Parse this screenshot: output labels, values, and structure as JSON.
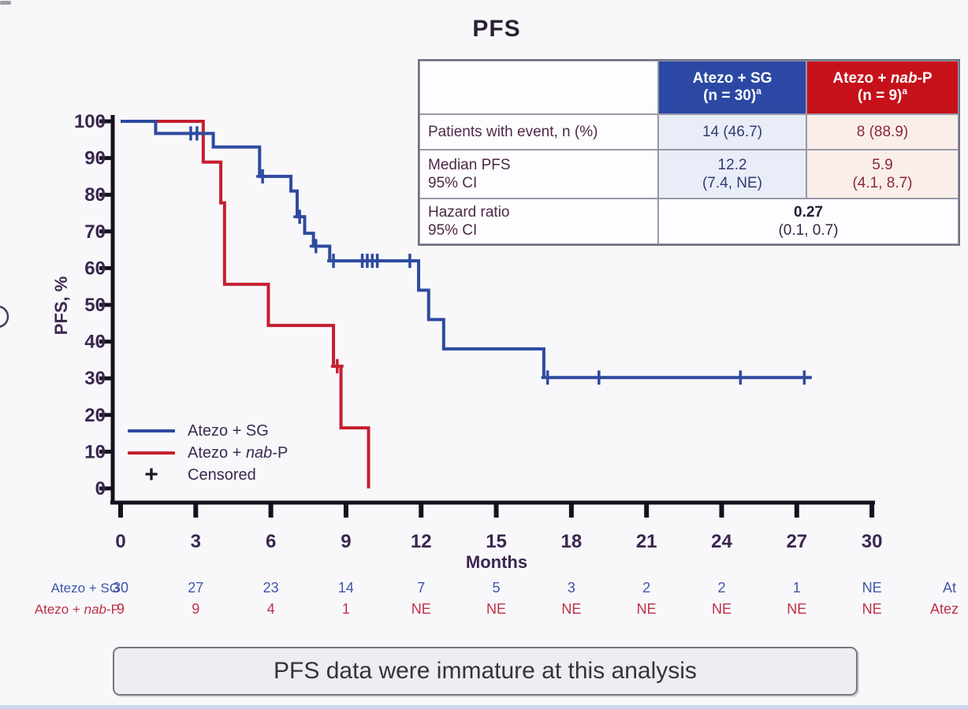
{
  "header": {
    "title": "PFS"
  },
  "stats_table": {
    "header_col2": {
      "line1": "Atezo + SG",
      "line2": "(n = 30)",
      "sup": "a"
    },
    "header_col3": {
      "line1_pre": "Atezo + ",
      "line1_it": "nab",
      "line1_post": "-P",
      "line2": "(n = 9)",
      "sup": "a"
    },
    "row1": {
      "label": "Patients with event, n (%)",
      "sg": "14 (46.7)",
      "nabp": "8 (88.9)"
    },
    "row2": {
      "label1": "Median PFS",
      "label2": "95% CI",
      "sg1": "12.2",
      "sg2": "(7.4, NE)",
      "nabp1": "5.9",
      "nabp2": "(4.1, 8.7)"
    },
    "row3": {
      "label1": "Hazard ratio",
      "label2": "95% CI",
      "val1": "0.27",
      "val2": "(0.1, 0.7)"
    }
  },
  "axis": {
    "x_label": "Months",
    "y_label": "PFS, %"
  },
  "legend": {
    "item1": "Atezo + SG",
    "item2_pre": "Atezo + ",
    "item2_it": "nab",
    "item2_post": "-P",
    "item3": "Censored"
  },
  "footer_note": "PFS data were immature at this analysis",
  "colors": {
    "sg_blue": "#2e4aa0",
    "nabp_red": "#c51f2f",
    "header_blue_bg": "#2b49a4",
    "header_red_bg": "#c6111a",
    "axis_black": "#16101f",
    "tick_text": "#3c2750",
    "atrisk_blue": "#3f55a8",
    "atrisk_red": "#bf3047"
  },
  "chart_data": {
    "type": "line",
    "subtype": "kaplan-meier-step",
    "title": "PFS",
    "xlabel": "Months",
    "ylabel": "PFS, %",
    "xlim": [
      0,
      30
    ],
    "ylim": [
      0,
      100
    ],
    "x_ticks": [
      0,
      3,
      6,
      9,
      12,
      15,
      18,
      21,
      24,
      27,
      30
    ],
    "y_ticks": [
      0,
      10,
      20,
      30,
      40,
      50,
      60,
      70,
      80,
      90,
      100
    ],
    "grid": false,
    "legend_position": "lower-left",
    "series": [
      {
        "name": "Atezo + SG",
        "color": "#2e4aa0",
        "start_level": 100,
        "steps": [
          [
            1.4,
            96.7
          ],
          [
            3.7,
            93
          ],
          [
            5.55,
            85
          ],
          [
            6.8,
            81
          ],
          [
            7.05,
            74
          ],
          [
            7.35,
            69.5
          ],
          [
            7.7,
            66
          ],
          [
            8.35,
            62
          ],
          [
            11.9,
            54
          ],
          [
            12.3,
            46
          ],
          [
            12.9,
            38
          ],
          [
            16.9,
            30.2
          ]
        ],
        "end_time": 27.6,
        "censors": [
          [
            2.8,
            96.7
          ],
          [
            3.05,
            96.7
          ],
          [
            5.67,
            85
          ],
          [
            7.15,
            74
          ],
          [
            7.8,
            66
          ],
          [
            8.5,
            62
          ],
          [
            9.65,
            62
          ],
          [
            9.85,
            62
          ],
          [
            10.05,
            62
          ],
          [
            10.25,
            62
          ],
          [
            11.55,
            62
          ],
          [
            17.05,
            30.2
          ],
          [
            19.1,
            30.2
          ],
          [
            24.75,
            30.2
          ],
          [
            27.3,
            30.2
          ]
        ]
      },
      {
        "name": "Atezo + nab-P",
        "color": "#c51f2f",
        "start_level": 100,
        "steps": [
          [
            3.3,
            88.9
          ],
          [
            4.0,
            77.8
          ],
          [
            4.15,
            55.6
          ],
          [
            5.9,
            44.4
          ],
          [
            8.5,
            33.3
          ],
          [
            8.8,
            16.5
          ],
          [
            9.9,
            0
          ]
        ],
        "end_time": 9.9,
        "censors": [
          [
            8.65,
            33.3
          ]
        ]
      }
    ],
    "at_risk": {
      "times": [
        0,
        3,
        6,
        9,
        12,
        15,
        18,
        21,
        24,
        27,
        30
      ],
      "rows": [
        {
          "label": "Atezo + SG",
          "color": "#3f55a8",
          "values": [
            "30",
            "27",
            "23",
            "14",
            "7",
            "5",
            "3",
            "2",
            "2",
            "1",
            "NE"
          ]
        },
        {
          "label": "Atezo + nab-P",
          "color": "#bf3047",
          "values": [
            "9",
            "9",
            "4",
            "1",
            "NE",
            "NE",
            "NE",
            "NE",
            "NE",
            "NE",
            "NE"
          ]
        }
      ],
      "truncated_right": [
        "At",
        "Atez"
      ]
    }
  }
}
